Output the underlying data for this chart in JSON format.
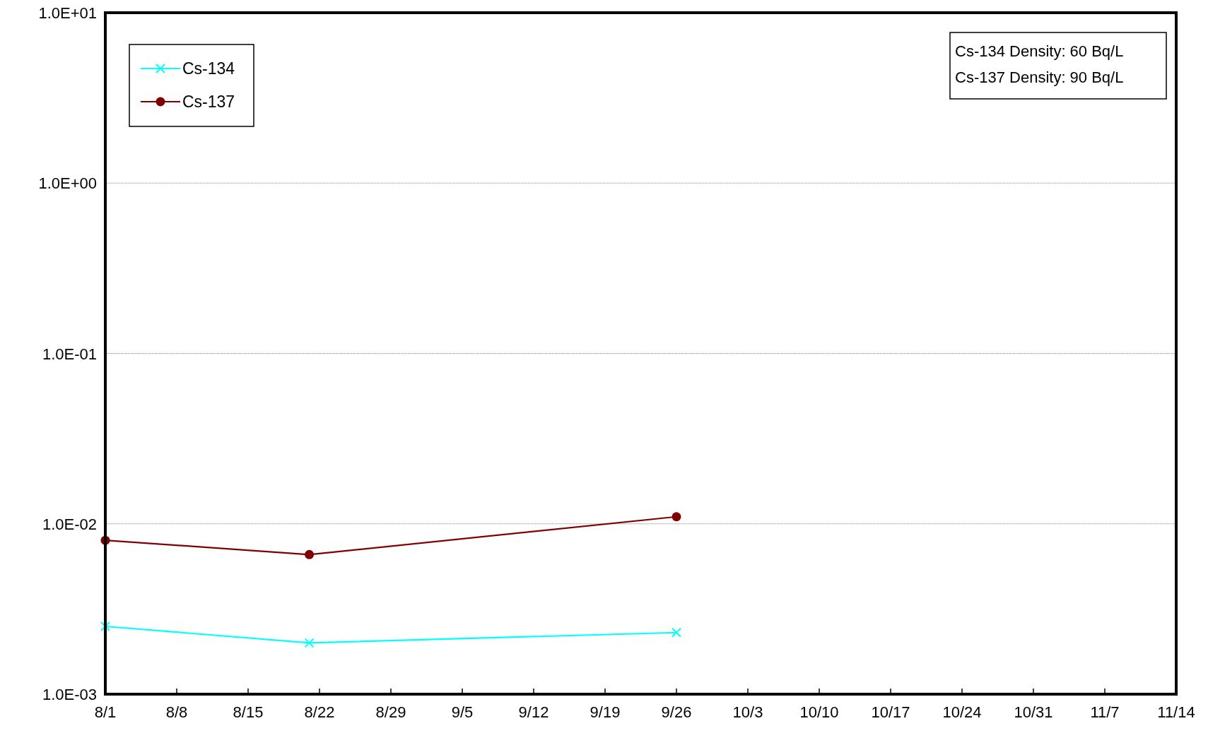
{
  "chart_data": {
    "type": "line",
    "log": "y",
    "grid": "y",
    "legend": "top left",
    "xlim": [
      "--08-01",
      "--11-14"
    ],
    "xticks": [
      {
        "value": "--08-01",
        "label": "8/1"
      },
      {
        "value": "--08-08",
        "label": "8/8"
      },
      {
        "value": "--08-15",
        "label": "8/15"
      },
      {
        "value": "--08-22",
        "label": "8/22"
      },
      {
        "value": "--08-29",
        "label": "8/29"
      },
      {
        "value": "--09-05",
        "label": "9/5"
      },
      {
        "value": "--09-12",
        "label": "9/12"
      },
      {
        "value": "--09-19",
        "label": "9/19"
      },
      {
        "value": "--09-26",
        "label": "9/26"
      },
      {
        "value": "--10-03",
        "label": "10/3"
      },
      {
        "value": "--10-10",
        "label": "10/10"
      },
      {
        "value": "--10-17",
        "label": "10/17"
      },
      {
        "value": "--10-24",
        "label": "10/24"
      },
      {
        "value": "--10-31",
        "label": "10/31"
      },
      {
        "value": "--11-07",
        "label": "11/7"
      },
      {
        "value": "--11-14",
        "label": "11/14"
      }
    ],
    "ylim": [
      0.001,
      10
    ],
    "yticks": [
      {
        "value": 0.001,
        "label": "1.0E-03"
      },
      {
        "value": 0.01,
        "label": "1.0E-02"
      },
      {
        "value": 0.1,
        "label": "1.0E-01"
      },
      {
        "value": 1,
        "label": "1.0E+00"
      },
      {
        "value": 10,
        "label": "1.0E+01"
      }
    ],
    "x": [
      "--08-01",
      "--08-21",
      "--09-26"
    ],
    "series": [
      {
        "name": "Cs-134",
        "color": "#00ffff",
        "marker": "cross",
        "values": [
          0.0025,
          0.002,
          0.0023
        ]
      },
      {
        "name": "Cs-137",
        "color": "#800000",
        "marker": "circle",
        "values": [
          0.008,
          0.0066,
          0.011
        ]
      }
    ],
    "annotations": [
      "Cs-134 Density: 60 Bq/L",
      "Cs-137 Density: 90 Bq/L"
    ]
  }
}
